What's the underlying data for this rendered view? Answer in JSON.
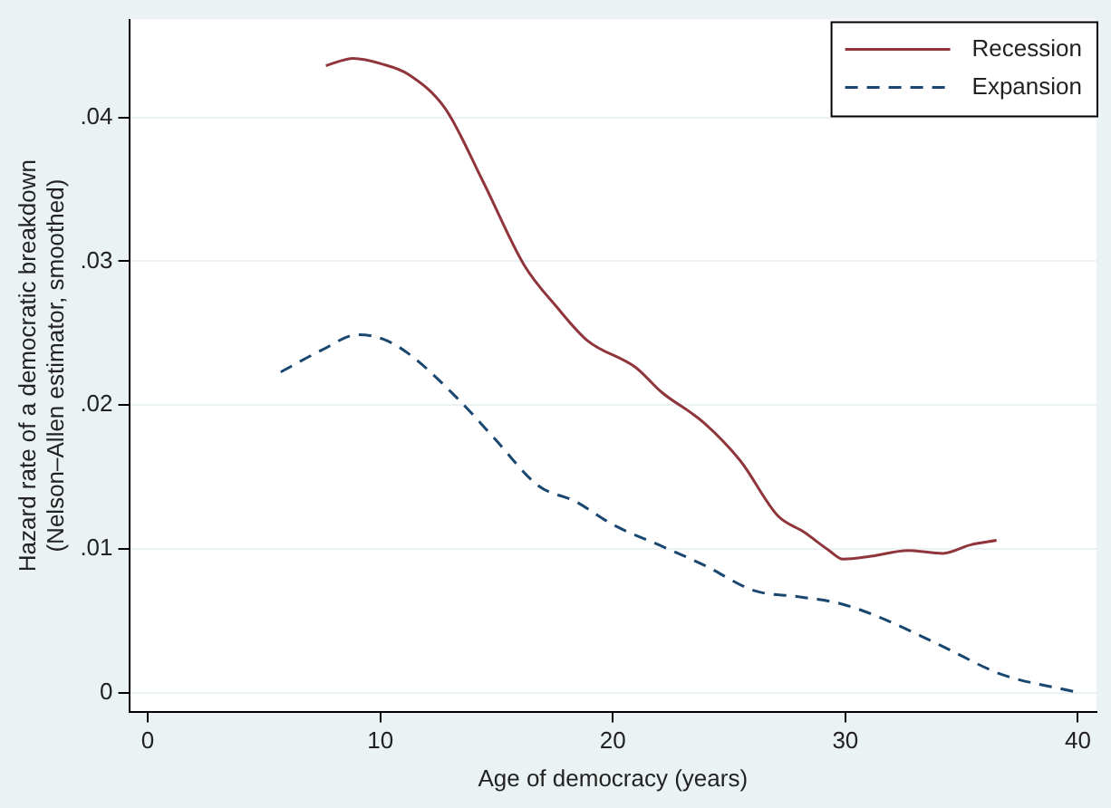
{
  "chart_data": {
    "type": "line",
    "xlabel": "Age of democracy (years)",
    "ylabel": "Hazard rate of a democratic breakdown\n(Nelson–Allen estimator, smoothed)",
    "xlim": [
      -0.8,
      40.8
    ],
    "xticks": [
      0,
      10,
      20,
      30,
      40
    ],
    "ylim": [
      -0.0013,
      0.0468
    ],
    "yticks": [
      {
        "value": 0,
        "label": "0"
      },
      {
        "value": 0.01,
        "label": ".01"
      },
      {
        "value": 0.02,
        "label": ".02"
      },
      {
        "value": 0.03,
        "label": ".03"
      },
      {
        "value": 0.04,
        "label": ".04"
      }
    ],
    "grid": "y",
    "legend": "top right",
    "marker": "none",
    "series": [
      {
        "name": "Recession",
        "color": "#90353b",
        "line_style": "solid",
        "x": [
          7.66,
          8.84,
          10.1,
          11.2,
          12.8,
          14.4,
          16.2,
          17.6,
          18.9,
          21.0,
          22.1,
          23.9,
          25.5,
          27.1,
          28.2,
          29.3,
          29.9,
          31.1,
          32.7,
          34.2,
          35.4,
          36.5
        ],
        "values": [
          0.0436,
          0.0441,
          0.0437,
          0.043,
          0.0406,
          0.0356,
          0.0297,
          0.0268,
          0.0245,
          0.0226,
          0.0209,
          0.0188,
          0.0161,
          0.0123,
          0.0112,
          0.0099,
          0.0093,
          0.0095,
          0.0099,
          0.0097,
          0.0103,
          0.0106
        ]
      },
      {
        "name": "Expansion",
        "color": "#1a476f",
        "line_style": "dashed",
        "x": [
          5.72,
          7.45,
          9.05,
          10.1,
          11.2,
          13.3,
          14.9,
          16.8,
          18.4,
          20.0,
          22.1,
          23.9,
          26.1,
          27.9,
          29.8,
          31.4,
          34.1,
          36.7,
          39.8
        ],
        "values": [
          0.0223,
          0.0238,
          0.0249,
          0.0246,
          0.0236,
          0.0205,
          0.0177,
          0.0144,
          0.0133,
          0.0117,
          0.0102,
          0.0089,
          0.0071,
          0.0067,
          0.0062,
          0.0053,
          0.0033,
          0.0013,
          0.0001
        ]
      }
    ]
  }
}
